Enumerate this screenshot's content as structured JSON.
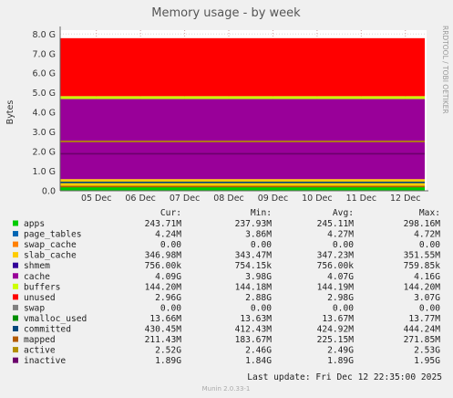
{
  "title": "Memory usage - by week",
  "side_label": "RRDTOOL / TOBI OETIKER",
  "ylabel": "Bytes",
  "columns": [
    "Cur:",
    "Min:",
    "Avg:",
    "Max:"
  ],
  "last_update": "Last update:  Fri Dec 12 22:35:00 2025",
  "footer": "Munin 2.0.33-1",
  "colors": {
    "apps": "#00cc00",
    "page_tables": "#0066b3",
    "swap_cache": "#ff8000",
    "slab_cache": "#ffcc00",
    "shmem": "#330099",
    "cache": "#990099",
    "buffers": "#ccff00",
    "unused": "#ff0000",
    "swap": "#808080",
    "vmalloc_used": "#008f00",
    "committed": "#00487d",
    "mapped": "#b35a00",
    "active": "#b38f00",
    "inactive": "#6b006b"
  },
  "chart_data": {
    "type": "area",
    "title": "Memory usage - by week",
    "ylabel": "Bytes",
    "xlabel": "",
    "x_categories": [
      "05 Dec",
      "06 Dec",
      "07 Dec",
      "08 Dec",
      "09 Dec",
      "10 Dec",
      "11 Dec",
      "12 Dec"
    ],
    "y_ticks": [
      "0.0",
      "1.0 G",
      "2.0 G",
      "3.0 G",
      "4.0 G",
      "5.0 G",
      "6.0 G",
      "7.0 G",
      "8.0 G"
    ],
    "ylim": [
      0,
      8.2
    ],
    "y_unit": "G",
    "grid": true,
    "stack_order": [
      "apps",
      "page_tables",
      "swap_cache",
      "slab_cache",
      "cache",
      "buffers",
      "unused",
      "swap"
    ],
    "stack_values_G": {
      "apps": 0.244,
      "page_tables": 0.004,
      "swap_cache": 0,
      "slab_cache": 0.347,
      "cache": 4.09,
      "buffers": 0.144,
      "unused": 2.96,
      "swap": 0
    },
    "line_values_G": {
      "committed": 0.43,
      "mapped": 0.211,
      "active": 2.52,
      "inactive": 1.89
    },
    "series": [
      {
        "name": "apps",
        "cur": "243.71M",
        "min": "237.93M",
        "avg": "245.11M",
        "max": "298.16M"
      },
      {
        "name": "page_tables",
        "cur": "4.24M",
        "min": "3.86M",
        "avg": "4.27M",
        "max": "4.72M"
      },
      {
        "name": "swap_cache",
        "cur": "0.00",
        "min": "0.00",
        "avg": "0.00",
        "max": "0.00"
      },
      {
        "name": "slab_cache",
        "cur": "346.98M",
        "min": "343.47M",
        "avg": "347.23M",
        "max": "351.55M"
      },
      {
        "name": "shmem",
        "cur": "756.00k",
        "min": "754.15k",
        "avg": "756.00k",
        "max": "759.85k"
      },
      {
        "name": "cache",
        "cur": "4.09G",
        "min": "3.98G",
        "avg": "4.07G",
        "max": "4.16G"
      },
      {
        "name": "buffers",
        "cur": "144.20M",
        "min": "144.18M",
        "avg": "144.19M",
        "max": "144.20M"
      },
      {
        "name": "unused",
        "cur": "2.96G",
        "min": "2.88G",
        "avg": "2.98G",
        "max": "3.07G"
      },
      {
        "name": "swap",
        "cur": "0.00",
        "min": "0.00",
        "avg": "0.00",
        "max": "0.00"
      },
      {
        "name": "vmalloc_used",
        "cur": "13.66M",
        "min": "13.63M",
        "avg": "13.67M",
        "max": "13.77M"
      },
      {
        "name": "committed",
        "cur": "430.45M",
        "min": "412.43M",
        "avg": "424.92M",
        "max": "444.24M"
      },
      {
        "name": "mapped",
        "cur": "211.43M",
        "min": "183.67M",
        "avg": "225.15M",
        "max": "271.85M"
      },
      {
        "name": "active",
        "cur": "2.52G",
        "min": "2.46G",
        "avg": "2.49G",
        "max": "2.53G"
      },
      {
        "name": "inactive",
        "cur": "1.89G",
        "min": "1.84G",
        "avg": "1.89G",
        "max": "1.95G"
      }
    ]
  }
}
